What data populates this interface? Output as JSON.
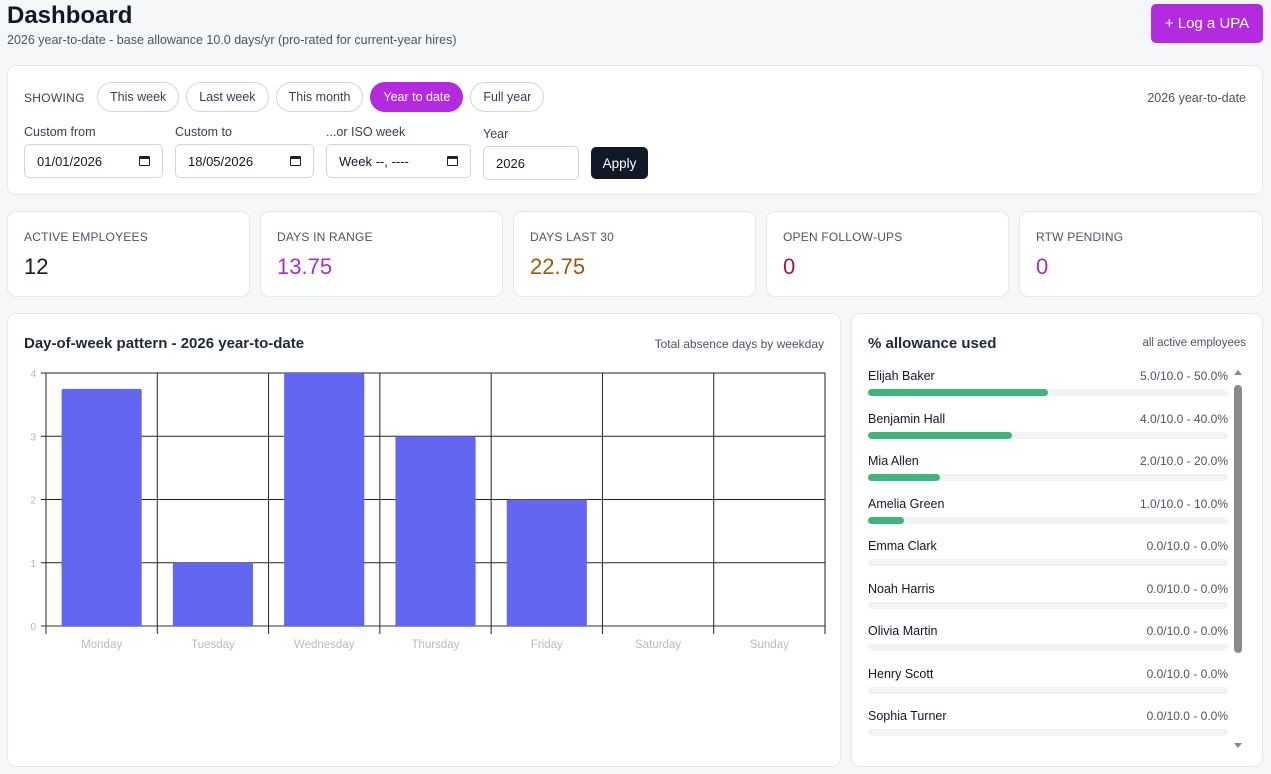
{
  "header": {
    "title": "Dashboard",
    "subtitle": "2026 year-to-date - base allowance 10.0 days/yr (pro-rated for current-year hires)",
    "log_button": "+ Log a UPA"
  },
  "filters": {
    "showing_label": "SHOWING",
    "periods": [
      {
        "label": "This week",
        "active": false
      },
      {
        "label": "Last week",
        "active": false
      },
      {
        "label": "This month",
        "active": false
      },
      {
        "label": "Year to date",
        "active": true
      },
      {
        "label": "Full year",
        "active": false
      }
    ],
    "range_label": "2026 year-to-date",
    "custom_from": {
      "label": "Custom from",
      "value": "01/01/2026"
    },
    "custom_to": {
      "label": "Custom to",
      "value": "18/05/2026"
    },
    "iso_week": {
      "label": "...or ISO week",
      "value": "Week --, ----"
    },
    "year": {
      "label": "Year",
      "value": "2026"
    },
    "apply_label": "Apply"
  },
  "stats": [
    {
      "label": "ACTIVE EMPLOYEES",
      "value": "12",
      "color": "#111827"
    },
    {
      "label": "DAYS IN RANGE",
      "value": "13.75",
      "color": "#a52fcf"
    },
    {
      "label": "DAYS LAST 30",
      "value": "22.75",
      "color": "#9a5a0f"
    },
    {
      "label": "OPEN FOLLOW-UPS",
      "value": "0",
      "color": "#b1123e"
    },
    {
      "label": "RTW PENDING",
      "value": "0",
      "color": "#9b30c9"
    }
  ],
  "chart": {
    "title": "Day-of-week pattern - 2026 year-to-date",
    "subtitle": "Total absence days by weekday"
  },
  "chart_data": {
    "type": "bar",
    "categories": [
      "Monday",
      "Tuesday",
      "Wednesday",
      "Thursday",
      "Friday",
      "Saturday",
      "Sunday"
    ],
    "values": [
      3.75,
      1,
      4,
      3,
      2,
      0,
      0
    ],
    "ylim": [
      0,
      4
    ],
    "yticks": [
      0,
      1,
      2,
      3,
      4
    ],
    "grid": true,
    "bar_color": "#6366f1"
  },
  "allowance": {
    "title": "% allowance used",
    "subtitle": "all active employees",
    "rows": [
      {
        "name": "Elijah Baker",
        "value": "5.0/10.0 - 50.0%",
        "fraction": 0.5
      },
      {
        "name": "Benjamin Hall",
        "value": "4.0/10.0 - 40.0%",
        "fraction": 0.4
      },
      {
        "name": "Mia Allen",
        "value": "2.0/10.0 - 20.0%",
        "fraction": 0.2
      },
      {
        "name": "Amelia Green",
        "value": "1.0/10.0 - 10.0%",
        "fraction": 0.1
      },
      {
        "name": "Emma Clark",
        "value": "0.0/10.0 - 0.0%",
        "fraction": 0
      },
      {
        "name": "Noah Harris",
        "value": "0.0/10.0 - 0.0%",
        "fraction": 0
      },
      {
        "name": "Olivia Martin",
        "value": "0.0/10.0 - 0.0%",
        "fraction": 0
      },
      {
        "name": "Henry Scott",
        "value": "0.0/10.0 - 0.0%",
        "fraction": 0
      },
      {
        "name": "Sophia Turner",
        "value": "0.0/10.0 - 0.0%",
        "fraction": 0
      }
    ],
    "bar_color": "#3fb57b"
  }
}
